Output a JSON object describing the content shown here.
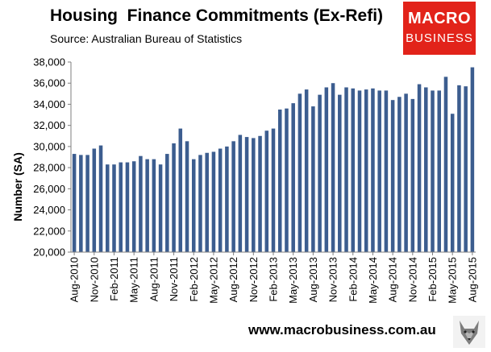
{
  "title": "Housing  Finance Commitments (Ex-Refi)",
  "subtitle": "Source: Australian Bureau of Statistics",
  "logo": {
    "line1": "MACRO",
    "line2": "BUSINESS",
    "color": "#e2231a",
    "icon": "wolf-icon"
  },
  "footer": {
    "url": "www.macrobusiness.com.au"
  },
  "chart_data": {
    "type": "bar",
    "ylabel": "Number (SA)",
    "xlabel": "",
    "ylim": [
      20000,
      38000
    ],
    "yticks": [
      20000,
      22000,
      24000,
      26000,
      28000,
      30000,
      32000,
      34000,
      36000,
      38000
    ],
    "ytick_labels": [
      "20,000",
      "22,000",
      "24,000",
      "26,000",
      "28,000",
      "30,000",
      "32,000",
      "34,000",
      "36,000",
      "38,000"
    ],
    "grid": false,
    "bar_color": "#3c5d8f",
    "categories": [
      "Aug-2010",
      "Sep-2010",
      "Oct-2010",
      "Nov-2010",
      "Dec-2010",
      "Jan-2011",
      "Feb-2011",
      "Mar-2011",
      "Apr-2011",
      "May-2011",
      "Jun-2011",
      "Jul-2011",
      "Aug-2011",
      "Sep-2011",
      "Oct-2011",
      "Nov-2011",
      "Dec-2011",
      "Jan-2012",
      "Feb-2012",
      "Mar-2012",
      "Apr-2012",
      "May-2012",
      "Jun-2012",
      "Jul-2012",
      "Aug-2012",
      "Sep-2012",
      "Oct-2012",
      "Nov-2012",
      "Dec-2012",
      "Jan-2013",
      "Feb-2013",
      "Mar-2013",
      "Apr-2013",
      "May-2013",
      "Jun-2013",
      "Jul-2013",
      "Aug-2013",
      "Sep-2013",
      "Oct-2013",
      "Nov-2013",
      "Dec-2013",
      "Jan-2014",
      "Feb-2014",
      "Mar-2014",
      "Apr-2014",
      "May-2014",
      "Jun-2014",
      "Jul-2014",
      "Aug-2014",
      "Sep-2014",
      "Oct-2014",
      "Nov-2014",
      "Dec-2014",
      "Jan-2015",
      "Feb-2015",
      "Mar-2015",
      "Apr-2015",
      "May-2015",
      "Jun-2015",
      "Jul-2015",
      "Aug-2015"
    ],
    "xtick_labels": [
      "Aug-2010",
      "Nov-2010",
      "Feb-2011",
      "May-2011",
      "Aug-2011",
      "Nov-2011",
      "Feb-2012",
      "May-2012",
      "Aug-2012",
      "Nov-2012",
      "Feb-2013",
      "May-2013",
      "Aug-2013",
      "Nov-2013",
      "Feb-2014",
      "May-2014",
      "Aug-2014",
      "Nov-2014",
      "Feb-2015",
      "May-2015",
      "Aug-2015"
    ],
    "values": [
      29300,
      29200,
      29200,
      29800,
      30100,
      28300,
      28300,
      28500,
      28500,
      28600,
      29100,
      28800,
      28800,
      28300,
      29300,
      30300,
      31700,
      30500,
      28800,
      29200,
      29400,
      29500,
      29800,
      30000,
      30500,
      31100,
      30900,
      30800,
      31000,
      31500,
      31700,
      33500,
      33600,
      34100,
      35000,
      35400,
      33800,
      34900,
      35600,
      36000,
      34900,
      35600,
      35500,
      35300,
      35400,
      35500,
      35300,
      35300,
      34400,
      34700,
      35000,
      34500,
      35900,
      35600,
      35300,
      35300,
      36600,
      33100,
      35800,
      35700,
      37500
    ]
  }
}
